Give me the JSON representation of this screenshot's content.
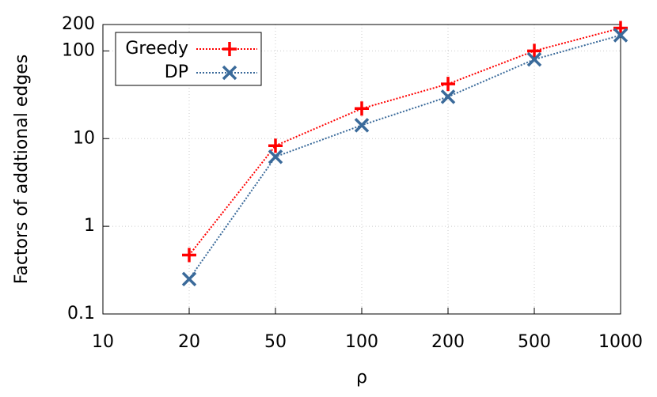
{
  "chart_data": {
    "type": "line",
    "xlabel": "ρ",
    "ylabel": "Factors of addtional edges",
    "categories": [
      "10",
      "20",
      "50",
      "100",
      "200",
      "500",
      "1000"
    ],
    "series": [
      {
        "name": "Greedy",
        "color": "#ff0000",
        "marker": "plus",
        "values": [
          null,
          0.47,
          8.3,
          22,
          42,
          100,
          182
        ]
      },
      {
        "name": "DP",
        "color": "#3a6a9a",
        "marker": "x",
        "values": [
          null,
          0.25,
          6.2,
          14.2,
          30,
          80,
          151
        ]
      }
    ],
    "ylim": [
      0.1,
      200
    ],
    "yticks": [
      0.1,
      1,
      10,
      100,
      200
    ],
    "log_y": true,
    "grid": true,
    "legend": "upper left"
  }
}
